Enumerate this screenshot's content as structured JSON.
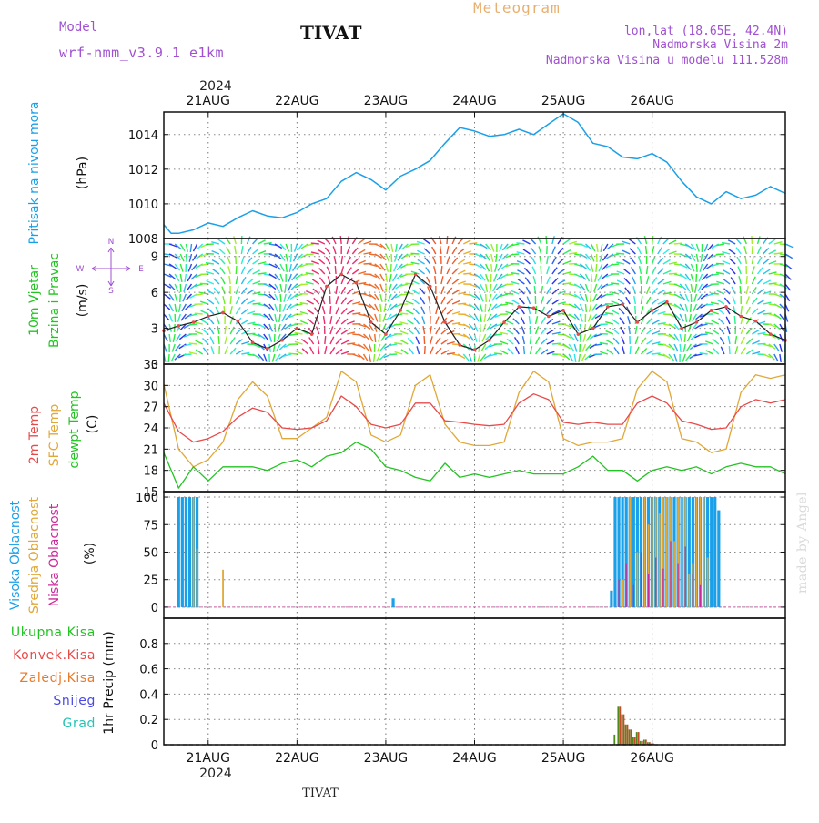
{
  "header": {
    "model_label": "Model",
    "model_name": "wrf-nmm_v3.9.1 e1km",
    "station": "TIVAT",
    "title": "Meteogram",
    "location": "lon,lat (18.65E, 42.4N)",
    "altitude": "Nadmorska Visina 2m",
    "model_altitude": "Nadmorska Visina u modelu 111.528m",
    "year": "2024",
    "footer_station": "TIVAT",
    "watermark": "made by Angel"
  },
  "colors": {
    "pressure": "#1aa0e8",
    "t2m": "#e84a4a",
    "sfc": "#e0a838",
    "dewpt": "#22c422",
    "high_cloud": "#1aa0e8",
    "mid_cloud": "#e0a838",
    "low_cloud": "#cc2a9a",
    "total_precip": "#22c422",
    "conv_precip": "#e84a4a",
    "frz_precip": "#e87a2a",
    "snow": "#4a4ae0",
    "hail": "#22c4b4",
    "purple_text": "#a050d0",
    "orange_text": "#e8b070"
  },
  "chart_data": [
    {
      "type": "line",
      "panel": "pressure",
      "ylabel_left": "Pritisak na nivou mora",
      "unit": "(hPa)",
      "x_unit": "hours from 2024-08-20 12:00",
      "ylim": [
        1008,
        1015.3
      ],
      "yticks": [
        1008,
        1010,
        1012,
        1014
      ],
      "series": [
        {
          "values_x": [
            0,
            2,
            4,
            8,
            12,
            16,
            20,
            24,
            28,
            32,
            36,
            40,
            44,
            48,
            52,
            56,
            60,
            64,
            68,
            72,
            76,
            80,
            84,
            88,
            92,
            96,
            100,
            104,
            108,
            112,
            116,
            120,
            124,
            128,
            132,
            136,
            140,
            144,
            148,
            152,
            156,
            160,
            164,
            168
          ],
          "values_y": [
            1008.8,
            1008.3,
            1008.3,
            1008.5,
            1008.9,
            1008.7,
            1009.2,
            1009.6,
            1009.3,
            1009.2,
            1009.5,
            1010.0,
            1010.3,
            1011.3,
            1011.8,
            1011.4,
            1010.8,
            1011.6,
            1012.0,
            1012.5,
            1013.5,
            1014.4,
            1014.2,
            1013.9,
            1014.0,
            1014.3,
            1014.0,
            1014.6,
            1015.2,
            1014.7,
            1013.5,
            1013.3,
            1012.7,
            1012.6,
            1012.9,
            1012.4,
            1011.3,
            1010.4,
            1010.0,
            1010.7,
            1010.3,
            1010.5,
            1011.0,
            1010.6
          ]
        }
      ]
    },
    {
      "type": "line",
      "panel": "wind",
      "ylabel_left_1": "10m Vjetar",
      "ylabel_left_2": "Brzina i Pravac",
      "unit": "(m/s)",
      "x_unit": "hours from 2024-08-20 12:00",
      "ylim": [
        0,
        10.5
      ],
      "yticks": [
        0,
        3,
        6,
        9
      ],
      "compass": {
        "n": "N",
        "s": "S",
        "w": "W",
        "e": "E"
      },
      "series": [
        {
          "name": "wind speed",
          "values_x": [
            0,
            4,
            8,
            12,
            16,
            20,
            24,
            28,
            32,
            36,
            40,
            44,
            48,
            52,
            56,
            60,
            64,
            68,
            72,
            76,
            80,
            84,
            88,
            92,
            96,
            100,
            104,
            108,
            112,
            116,
            120,
            124,
            128,
            132,
            136,
            140,
            144,
            148,
            152,
            156,
            160,
            164,
            168
          ],
          "values_y": [
            2.8,
            3.2,
            3.5,
            4.0,
            4.3,
            3.6,
            1.8,
            1.3,
            2.0,
            3.0,
            2.5,
            6.5,
            7.5,
            6.8,
            3.5,
            2.5,
            4.5,
            7.5,
            6.5,
            3.5,
            1.6,
            1.2,
            2.0,
            3.5,
            4.8,
            4.7,
            4.0,
            4.5,
            2.5,
            3.0,
            4.8,
            5.0,
            3.5,
            4.5,
            5.2,
            3.0,
            3.5,
            4.5,
            4.8,
            4.0,
            3.6,
            2.5,
            2.0
          ]
        }
      ]
    },
    {
      "type": "line",
      "panel": "temperature",
      "ylabel_left_1": "2m Temp",
      "ylabel_left_2": "SFC Temp",
      "ylabel_left_3": "dewpt Temp",
      "unit": "(C)",
      "x_unit": "hours from 2024-08-20 12:00",
      "ylim": [
        15,
        33
      ],
      "yticks": [
        15,
        18,
        21,
        24,
        27,
        30,
        33
      ],
      "series": [
        {
          "name": "2m Temp",
          "values_x": [
            0,
            4,
            8,
            12,
            16,
            20,
            24,
            28,
            32,
            36,
            40,
            44,
            48,
            52,
            56,
            60,
            64,
            68,
            72,
            76,
            80,
            84,
            88,
            92,
            96,
            100,
            104,
            108,
            112,
            116,
            120,
            124,
            128,
            132,
            136,
            140,
            144,
            148,
            152,
            156,
            160,
            164,
            168
          ],
          "values_y": [
            27.5,
            23.5,
            22.0,
            22.5,
            23.5,
            25.5,
            26.8,
            26.2,
            24.0,
            23.8,
            24.0,
            25.0,
            28.5,
            27.0,
            24.5,
            24.0,
            24.5,
            27.5,
            27.5,
            25.0,
            24.8,
            24.5,
            24.3,
            24.5,
            27.5,
            28.8,
            28.0,
            24.8,
            24.5,
            24.8,
            24.5,
            24.5,
            27.5,
            28.5,
            27.5,
            25.0,
            24.5,
            23.8,
            24.0,
            27.0,
            28.0,
            27.5,
            28.0
          ]
        },
        {
          "name": "SFC Temp",
          "values_x": [
            0,
            4,
            8,
            12,
            16,
            20,
            24,
            28,
            32,
            36,
            40,
            44,
            48,
            52,
            56,
            60,
            64,
            68,
            72,
            76,
            80,
            84,
            88,
            92,
            96,
            100,
            104,
            108,
            112,
            116,
            120,
            124,
            128,
            132,
            136,
            140,
            144,
            148,
            152,
            156,
            160,
            164,
            168
          ],
          "values_y": [
            30.2,
            21.0,
            18.5,
            19.5,
            22.0,
            28.0,
            30.5,
            28.5,
            22.5,
            22.5,
            24.0,
            25.5,
            32.0,
            30.5,
            23.0,
            22.0,
            23.0,
            30.0,
            31.5,
            24.5,
            22.0,
            21.5,
            21.5,
            22.0,
            29.0,
            32.0,
            30.5,
            22.5,
            21.5,
            22.0,
            22.0,
            22.5,
            29.5,
            32.0,
            30.5,
            22.5,
            22.0,
            20.5,
            21.0,
            29.0,
            31.5,
            31.0,
            31.5
          ]
        },
        {
          "name": "dewpt Temp",
          "values_x": [
            0,
            4,
            8,
            12,
            16,
            20,
            24,
            28,
            32,
            36,
            40,
            44,
            48,
            52,
            56,
            60,
            64,
            68,
            72,
            76,
            80,
            84,
            88,
            92,
            96,
            100,
            104,
            108,
            112,
            116,
            120,
            124,
            128,
            132,
            136,
            140,
            144,
            148,
            152,
            156,
            160,
            164,
            168
          ],
          "values_y": [
            20.5,
            15.5,
            18.5,
            16.5,
            18.5,
            18.5,
            18.5,
            18.0,
            19.0,
            19.5,
            18.5,
            20.0,
            20.5,
            22.0,
            21.0,
            18.5,
            18.0,
            17.0,
            16.5,
            19.0,
            17.0,
            17.5,
            17.0,
            17.5,
            18.0,
            17.5,
            17.5,
            17.5,
            18.5,
            20.0,
            18.0,
            18.0,
            16.5,
            18.0,
            18.5,
            18.0,
            18.5,
            17.5,
            18.5,
            19.0,
            18.5,
            18.5,
            17.5
          ]
        }
      ]
    },
    {
      "type": "bar",
      "panel": "cloud",
      "ylabel_left_1": "Visoka Oblacnost",
      "ylabel_left_2": "Srednja Oblacnost",
      "ylabel_left_3": "Niska Oblacnost",
      "unit": "(%)",
      "x_unit": "hours from 2024-08-20 12:00",
      "ylim": [
        -10,
        105
      ],
      "yticks": [
        0,
        25,
        50,
        75,
        100
      ],
      "series": [
        {
          "name": "Visoka Oblacnost",
          "values_x": [
            4,
            5,
            6,
            7,
            8,
            9,
            62,
            121,
            122,
            123,
            124,
            125,
            126,
            127,
            128,
            129,
            130,
            131,
            132,
            133,
            134,
            135,
            136,
            137,
            138,
            139,
            140,
            141,
            142,
            143,
            144,
            145,
            146,
            147,
            148,
            149,
            150
          ],
          "values_y": [
            100,
            100,
            100,
            100,
            100,
            100,
            8,
            15,
            100,
            100,
            100,
            100,
            100,
            100,
            100,
            100,
            100,
            100,
            100,
            100,
            100,
            100,
            100,
            100,
            100,
            100,
            100,
            100,
            100,
            100,
            100,
            100,
            100,
            100,
            100,
            100,
            88
          ]
        },
        {
          "name": "Srednja Oblacnost",
          "values_x": [
            8,
            9,
            16,
            124,
            126,
            128,
            130,
            131,
            132,
            133,
            134,
            135,
            136,
            137,
            138,
            139,
            140,
            141,
            142,
            143,
            144,
            145,
            146,
            147
          ],
          "values_y": [
            100,
            53,
            34,
            25,
            100,
            50,
            100,
            75,
            100,
            100,
            85,
            100,
            100,
            100,
            60,
            100,
            100,
            100,
            30,
            40,
            100,
            100,
            100,
            45
          ]
        },
        {
          "name": "Niska Oblacnost",
          "values_x": [
            123,
            125,
            127,
            129,
            131,
            133,
            135,
            137,
            139,
            141,
            143,
            145
          ],
          "values_y": [
            25,
            40,
            20,
            50,
            30,
            45,
            35,
            60,
            40,
            55,
            30,
            20
          ]
        }
      ]
    },
    {
      "type": "bar",
      "panel": "precip",
      "ylabel_left_1": "Ukupna Kisa",
      "ylabel_left_2": "Konvek.Kisa",
      "ylabel_left_3": "Zaledj.Kisa",
      "ylabel_left_4": "Snijeg",
      "ylabel_left_5": "Grad",
      "unit": "1hr Precip (mm)",
      "x_unit": "hours from 2024-08-20 12:00",
      "ylim": [
        0,
        1.0
      ],
      "yticks": [
        0,
        0.2,
        0.4,
        0.6,
        0.8
      ],
      "series": [
        {
          "name": "Ukupna Kisa",
          "values_x": [
            122,
            123,
            124,
            125,
            126,
            127,
            128,
            129,
            130,
            131,
            132
          ],
          "values_y": [
            0.08,
            0.3,
            0.24,
            0.16,
            0.12,
            0.06,
            0.1,
            0.03,
            0.04,
            0.02,
            0.01
          ]
        },
        {
          "name": "Konvek.Kisa",
          "values_x": [
            123,
            124,
            125,
            126,
            127,
            128,
            129,
            130,
            131,
            132
          ],
          "values_y": [
            0.3,
            0.24,
            0.16,
            0.12,
            0.06,
            0.1,
            0.03,
            0.04,
            0.02,
            0.01
          ]
        }
      ]
    }
  ],
  "x_axis": {
    "start_hour_offset_note": "",
    "ticks": [
      {
        "hour": 12,
        "label": "21AUG"
      },
      {
        "hour": 36,
        "label": "22AUG"
      },
      {
        "hour": 60,
        "label": "23AUG"
      },
      {
        "hour": 84,
        "label": "24AUG"
      },
      {
        "hour": 108,
        "label": "25AUG"
      },
      {
        "hour": 132,
        "label": "26AUG"
      }
    ],
    "xlim": [
      0,
      168
    ]
  }
}
